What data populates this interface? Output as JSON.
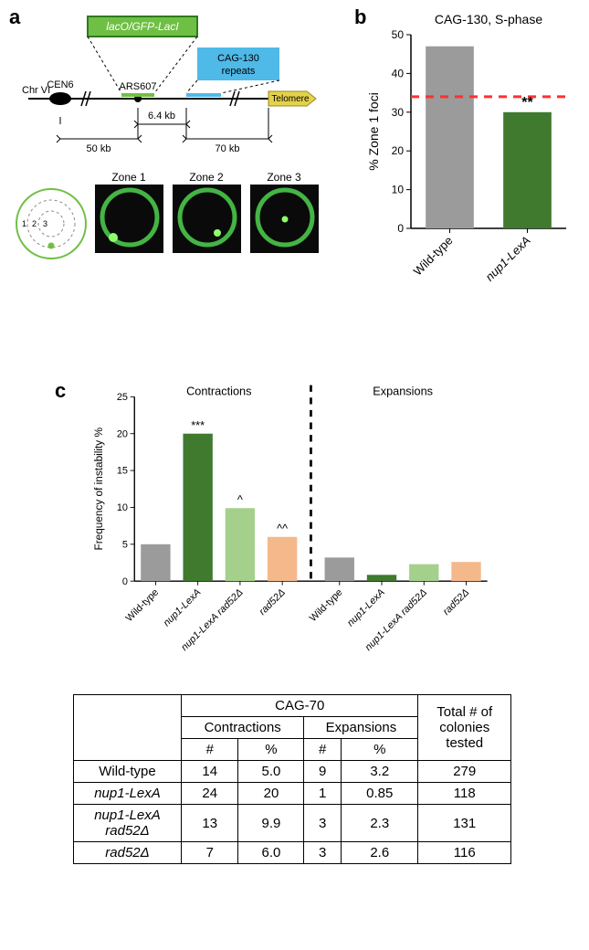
{
  "panel_a": {
    "label": "a",
    "lacO_label": "lacO/GFP-LacI",
    "cag_label": "CAG-130\nrepeats",
    "chr_label": "Chr VI",
    "cen_label": "CEN6",
    "ars_label": "ARS607",
    "telomere_label": "Telomere",
    "dist_left": "50 kb",
    "dist_mid": "6.4 kb",
    "dist_right": "70 kb",
    "zone_labels": [
      "Zone 1",
      "Zone 2",
      "Zone 3"
    ],
    "ring_labels": [
      "1",
      "2",
      "3"
    ],
    "colors": {
      "lacO_fill": "#6fbf44",
      "lacO_stroke": "#2f7a1f",
      "cag_fill": "#4fb9e8",
      "arrow_fill": "#e3d24b",
      "ring_stroke": "#6fbf44",
      "ring_dash": "#8a8a8a",
      "cell_bg": "#0a0a0a",
      "gfp_green": "#4fd24f"
    }
  },
  "panel_b": {
    "label": "b",
    "title": "CAG-130, S-phase",
    "y_label": "% Zone 1 foci",
    "ylim": [
      0,
      50
    ],
    "ytick_step": 10,
    "categories": [
      "Wild-type",
      "nup1-LexA"
    ],
    "italic_mask": [
      false,
      true
    ],
    "values": [
      47,
      30
    ],
    "dashed_line_y": 34,
    "annot": "**",
    "bar_colors": [
      "#9b9b9b",
      "#3f7a2f"
    ],
    "axis_color": "#000000",
    "dash_color": "#ff3030",
    "bar_width": 0.62,
    "background": "#ffffff"
  },
  "panel_c": {
    "label": "c",
    "section_left": "Contractions",
    "section_right": "Expansions",
    "y_label": "Frequency of instability %",
    "ylim": [
      0,
      25
    ],
    "ytick_step": 5,
    "categories": [
      "Wild-type",
      "nup1-LexA",
      "nup1-LexA rad52Δ",
      "rad52Δ"
    ],
    "italic_mask": [
      false,
      true,
      true,
      true
    ],
    "contractions": [
      5.0,
      20.0,
      9.9,
      6.0
    ],
    "expansions": [
      3.2,
      0.85,
      2.3,
      2.6
    ],
    "annotations_contractions": [
      "",
      "***",
      "^",
      "^^"
    ],
    "annotations_expansions": [
      "",
      "",
      "",
      ""
    ],
    "bar_colors": [
      "#9b9b9b",
      "#3f7a2f",
      "#a5d08c",
      "#f4b88b"
    ],
    "axis_color": "#000000",
    "dash_color": "#000000",
    "bar_width": 0.7,
    "background": "#ffffff"
  },
  "table": {
    "header_main": "CAG-70",
    "header_total": "Total # of\ncolonies\ntested",
    "sub_headers": [
      "Contractions",
      "Expansions"
    ],
    "col_headers": [
      "#",
      "%",
      "#",
      "%"
    ],
    "rows": [
      {
        "label": "Wild-type",
        "italic": false,
        "c_n": 14,
        "c_p": "5.0",
        "e_n": 9,
        "e_p": "3.2",
        "total": 279
      },
      {
        "label": "nup1-LexA",
        "italic": true,
        "c_n": 24,
        "c_p": "20",
        "e_n": 1,
        "e_p": "0.85",
        "total": 118
      },
      {
        "label": "nup1-LexA\nrad52Δ",
        "italic": true,
        "c_n": 13,
        "c_p": "9.9",
        "e_n": 3,
        "e_p": "2.3",
        "total": 131
      },
      {
        "label": "rad52Δ",
        "italic": true,
        "c_n": 7,
        "c_p": "6.0",
        "e_n": 3,
        "e_p": "2.6",
        "total": 116
      }
    ]
  }
}
